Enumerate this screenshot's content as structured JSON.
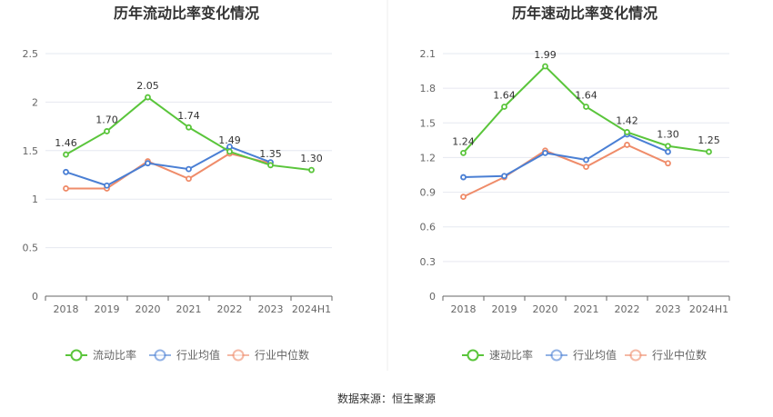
{
  "source": "数据来源：恒生聚源",
  "colors": {
    "main": "#5ac53b",
    "avg": "#4a7fd4",
    "median": "#ef8c6a"
  },
  "chart_data": [
    {
      "type": "line",
      "title": "历年流动比率变化情况",
      "categories": [
        "2018",
        "2019",
        "2020",
        "2021",
        "2022",
        "2023",
        "2024H1"
      ],
      "ylim": [
        0,
        2.5
      ],
      "yticks": [
        "0",
        "0.5",
        "1",
        "1.5",
        "2",
        "2.5"
      ],
      "grid": true,
      "legend_position": "bottom",
      "series": [
        {
          "name": "流动比率",
          "values": [
            1.46,
            1.7,
            2.05,
            1.74,
            1.49,
            1.35,
            1.3
          ],
          "labels": [
            "1.46",
            "1.70",
            "2.05",
            "1.74",
            "1.49",
            "1.35",
            "1.30"
          ]
        },
        {
          "name": "行业均值",
          "values": [
            1.28,
            1.14,
            1.37,
            1.31,
            1.54,
            1.38,
            null
          ]
        },
        {
          "name": "行业中位数",
          "values": [
            1.11,
            1.11,
            1.39,
            1.21,
            1.47,
            1.37,
            null
          ]
        }
      ]
    },
    {
      "type": "line",
      "title": "历年速动比率变化情况",
      "categories": [
        "2018",
        "2019",
        "2020",
        "2021",
        "2022",
        "2023",
        "2024H1"
      ],
      "ylim": [
        0,
        2.1
      ],
      "yticks": [
        "0",
        "0.3",
        "0.6",
        "0.9",
        "1.2",
        "1.5",
        "1.8",
        "2.1"
      ],
      "grid": true,
      "legend_position": "bottom",
      "series": [
        {
          "name": "速动比率",
          "values": [
            1.24,
            1.64,
            1.99,
            1.64,
            1.42,
            1.3,
            1.25
          ],
          "labels": [
            "1.24",
            "1.64",
            "1.99",
            "1.64",
            "1.42",
            "1.30",
            "1.25"
          ]
        },
        {
          "name": "行业均值",
          "values": [
            1.03,
            1.04,
            1.24,
            1.18,
            1.4,
            1.25,
            null
          ]
        },
        {
          "name": "行业中位数",
          "values": [
            0.86,
            1.03,
            1.26,
            1.12,
            1.31,
            1.15,
            null
          ]
        }
      ]
    }
  ]
}
